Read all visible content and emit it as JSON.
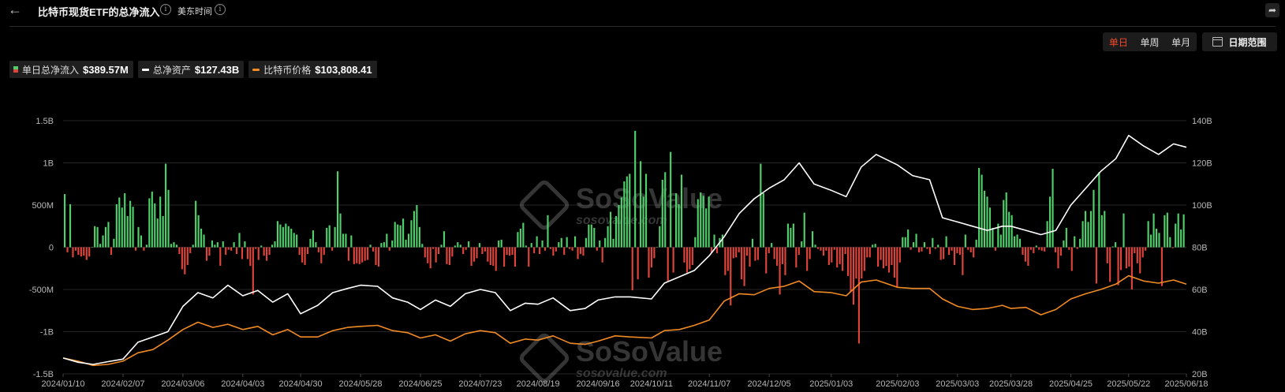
{
  "header": {
    "back_icon": "arrow-left-icon",
    "title": "比特币现货ETF的总净流入",
    "timezone": "美东时间",
    "share_icon": "share-icon"
  },
  "controls": {
    "periods": [
      "单日",
      "单周",
      "单月"
    ],
    "active_period": "单日",
    "date_range_label": "日期范围",
    "active_color": "#f04a2a"
  },
  "legend": [
    {
      "label": "单日总净流入",
      "value": "$389.57M"
    },
    {
      "label": "总净资产",
      "value": "$127.43B"
    },
    {
      "label": "比特币价格",
      "value": "$103,808.41"
    }
  ],
  "watermark": {
    "brand": "SoSoValue",
    "site": "sosovalue.com"
  },
  "chart_data": {
    "type": "bar+line",
    "x_ticks": [
      "2024/01/10",
      "2024/02/07",
      "2024/03/06",
      "2024/04/03",
      "2024/04/30",
      "2024/05/28",
      "2024/06/25",
      "2024/07/23",
      "2024/08/19",
      "2024/09/16",
      "2024/10/11",
      "2024/11/07",
      "2024/12/05",
      "2025/01/03",
      "2025/02/03",
      "2025/03/03",
      "2025/03/28",
      "2025/04/25",
      "2025/05/22",
      "2025/06/18"
    ],
    "y_left_ticks": [
      "1.5B",
      "1B",
      "500M",
      "0",
      "-500M",
      "-1B",
      "-1.5B"
    ],
    "y_left_range": [
      -1500,
      1500
    ],
    "y_left_unit": "USD millions",
    "y_right_ticks": [
      "140B",
      "120B",
      "100B",
      "80B",
      "60B",
      "40B",
      "20B"
    ],
    "y_right_range": [
      20,
      140
    ],
    "y_right_unit": "USD billions",
    "colors": {
      "inflow": "#4ed06a",
      "outflow": "#e0443a",
      "net_assets": "#ffffff",
      "btc_price": "#f08a24",
      "grid": "#262626"
    },
    "series": [
      {
        "name": "单日总净流入",
        "kind": "bar",
        "axis": "left",
        "unit": "USD millions",
        "values": [
          630,
          -60,
          510,
          -120,
          -40,
          -90,
          -110,
          -100,
          -150,
          -110,
          0,
          250,
          240,
          40,
          140,
          240,
          300,
          -90,
          100,
          510,
          590,
          470,
          640,
          370,
          550,
          480,
          -40,
          240,
          140,
          -40,
          30,
          580,
          660,
          520,
          340,
          600,
          370,
          990,
          680,
          40,
          60,
          30,
          -80,
          -260,
          -320,
          -210,
          -70,
          30,
          550,
          380,
          220,
          150,
          -160,
          -100,
          80,
          30,
          60,
          -220,
          70,
          -90,
          -30,
          -40,
          60,
          -80,
          170,
          -140,
          70,
          -140,
          -220,
          -560,
          -20,
          -150,
          20,
          -100,
          -160,
          -90,
          30,
          70,
          310,
          270,
          240,
          280,
          250,
          220,
          170,
          150,
          -90,
          -180,
          -210,
          -80,
          100,
          200,
          60,
          -60,
          -190,
          -90,
          230,
          260,
          -40,
          240,
          900,
          400,
          160,
          160,
          -160,
          140,
          -200,
          -190,
          -200,
          -180,
          -160,
          -150,
          30,
          -50,
          -210,
          -230,
          50,
          60,
          160,
          -40,
          80,
          300,
          270,
          260,
          340,
          90,
          160,
          320,
          430,
          500,
          240,
          40,
          -120,
          -190,
          -250,
          -20,
          -180,
          -80,
          30,
          190,
          -200,
          -210,
          -110,
          20,
          60,
          30,
          -80,
          -30,
          70,
          -220,
          -170,
          -130,
          50,
          -80,
          -50,
          -170,
          -210,
          -220,
          -280,
          80,
          90,
          -230,
          -90,
          -100,
          -90,
          -230,
          180,
          220,
          290,
          20,
          -230,
          50,
          -70,
          130,
          -80,
          80,
          -40,
          380,
          -20,
          -100,
          -50,
          60,
          110,
          -90,
          120,
          -20,
          -40,
          130,
          -140,
          -80,
          -100,
          110,
          270,
          270,
          230,
          -40,
          80,
          -180,
          110,
          250,
          420,
          100,
          370,
          500,
          590,
          780,
          840,
          870,
          -510,
          1380,
          -380,
          1020,
          600,
          870,
          -360,
          -240,
          -130,
          0,
          250,
          800,
          890,
          -400,
          1130,
          -300,
          640,
          510,
          860,
          -180,
          -300,
          -260,
          -210,
          120,
          570,
          650,
          610,
          460,
          600,
          -70,
          150,
          -70,
          110,
          150,
          -330,
          -280,
          -690,
          -130,
          -120,
          -60,
          -380,
          -460,
          -100,
          -230,
          100,
          -160,
          -150,
          990,
          640,
          -310,
          -70,
          50,
          -140,
          -220,
          -560,
          -200,
          -330,
          280,
          230,
          280,
          -240,
          -90,
          70,
          410,
          -280,
          -140,
          190,
          30,
          -20,
          -40,
          -100,
          -40,
          -210,
          -180,
          -30,
          -240,
          -200,
          -280,
          -80,
          -340,
          -530,
          -680,
          -370,
          -1140,
          -370,
          -280,
          -120,
          -120,
          30,
          40,
          -230,
          -150,
          -250,
          -220,
          -300,
          -210,
          -360,
          -480,
          -180,
          120,
          120,
          210,
          -30,
          60,
          160,
          -60,
          -50,
          60,
          -20,
          -80,
          110,
          -20,
          30,
          -150,
          -140,
          130,
          -90,
          -40,
          -210,
          -70,
          -90,
          -330,
          150,
          -30,
          -60,
          -120,
          90,
          940,
          860,
          670,
          600,
          470,
          230,
          -40,
          280,
          150,
          560,
          650,
          420,
          380,
          130,
          150,
          100,
          -90,
          -170,
          -220,
          -30,
          -70,
          20,
          -30,
          -40,
          -50,
          310,
          600,
          930,
          -60,
          -250,
          -100,
          80,
          230,
          -30,
          -280,
          130,
          -20,
          100,
          310,
          430,
          300,
          430,
          680,
          -430,
          890,
          380,
          430,
          -190,
          -410,
          10,
          60,
          -450,
          -270,
          400,
          -250,
          -230,
          -500,
          -70,
          -190,
          -310,
          -120,
          -40,
          310,
          150,
          400,
          220,
          170,
          -460,
          380,
          410,
          120,
          -10,
          280,
          400,
          210,
          390
        ],
        "last_value": 389.57
      },
      {
        "name": "总净资产",
        "kind": "line",
        "axis": "right",
        "unit": "USD billions",
        "points": [
          [
            "2024/01/10",
            27.5
          ],
          [
            "2024/01/17",
            25.5
          ],
          [
            "2024/01/24",
            24.5
          ],
          [
            "2024/01/31",
            25.8
          ],
          [
            "2024/02/07",
            27.0
          ],
          [
            "2024/02/14",
            35.0
          ],
          [
            "2024/02/21",
            37.5
          ],
          [
            "2024/02/28",
            40.0
          ],
          [
            "2024/03/06",
            52.0
          ],
          [
            "2024/03/13",
            58.5
          ],
          [
            "2024/03/20",
            56.0
          ],
          [
            "2024/03/27",
            62.0
          ],
          [
            "2024/04/03",
            57.0
          ],
          [
            "2024/04/10",
            59.5
          ],
          [
            "2024/04/17",
            54.0
          ],
          [
            "2024/04/24",
            58.0
          ],
          [
            "2024/04/30",
            48.5
          ],
          [
            "2024/05/08",
            52.5
          ],
          [
            "2024/05/15",
            58.5
          ],
          [
            "2024/05/22",
            60.5
          ],
          [
            "2024/05/28",
            62.0
          ],
          [
            "2024/06/05",
            61.5
          ],
          [
            "2024/06/12",
            56.0
          ],
          [
            "2024/06/19",
            54.0
          ],
          [
            "2024/06/25",
            50.5
          ],
          [
            "2024/07/02",
            55.0
          ],
          [
            "2024/07/09",
            52.0
          ],
          [
            "2024/07/16",
            58.0
          ],
          [
            "2024/07/23",
            60.0
          ],
          [
            "2024/07/30",
            58.5
          ],
          [
            "2024/08/06",
            50.0
          ],
          [
            "2024/08/13",
            53.5
          ],
          [
            "2024/08/19",
            53.0
          ],
          [
            "2024/08/26",
            56.0
          ],
          [
            "2024/09/03",
            50.0
          ],
          [
            "2024/09/10",
            51.0
          ],
          [
            "2024/09/16",
            55.0
          ],
          [
            "2024/09/24",
            56.5
          ],
          [
            "2024/10/01",
            56.5
          ],
          [
            "2024/10/11",
            55.5
          ],
          [
            "2024/10/17",
            63.0
          ],
          [
            "2024/10/24",
            66.0
          ],
          [
            "2024/10/31",
            69.0
          ],
          [
            "2024/11/07",
            76.0
          ],
          [
            "2024/11/14",
            85.0
          ],
          [
            "2024/11/21",
            96.0
          ],
          [
            "2024/11/28",
            103.0
          ],
          [
            "2024/12/05",
            108.0
          ],
          [
            "2024/12/12",
            112.0
          ],
          [
            "2024/12/19",
            120.0
          ],
          [
            "2024/12/26",
            110.0
          ],
          [
            "2025/01/03",
            107.0
          ],
          [
            "2025/01/10",
            104.0
          ],
          [
            "2025/01/17",
            118.0
          ],
          [
            "2025/01/24",
            124.0
          ],
          [
            "2025/02/03",
            119.0
          ],
          [
            "2025/02/10",
            114.0
          ],
          [
            "2025/02/18",
            112.0
          ],
          [
            "2025/02/24",
            94.0
          ],
          [
            "2025/03/03",
            92.0
          ],
          [
            "2025/03/10",
            90.0
          ],
          [
            "2025/03/17",
            88.0
          ],
          [
            "2025/03/24",
            90.0
          ],
          [
            "2025/03/28",
            90.0
          ],
          [
            "2025/04/04",
            88.0
          ],
          [
            "2025/04/11",
            86.0
          ],
          [
            "2025/04/18",
            88.0
          ],
          [
            "2025/04/25",
            100.0
          ],
          [
            "2025/05/02",
            108.0
          ],
          [
            "2025/05/09",
            116.0
          ],
          [
            "2025/05/16",
            122.0
          ],
          [
            "2025/05/22",
            133.0
          ],
          [
            "2025/05/29",
            128.0
          ],
          [
            "2025/06/05",
            124.0
          ],
          [
            "2025/06/12",
            129.0
          ],
          [
            "2025/06/18",
            127.4
          ]
        ],
        "last_value": 127.43
      },
      {
        "name": "比特币价格",
        "kind": "line",
        "axis": "right",
        "unit": "USD (scaled to right axis, ~1B = $1,000)",
        "points": [
          [
            "2024/01/10",
            27.5
          ],
          [
            "2024/01/17",
            26.0
          ],
          [
            "2024/01/24",
            24.0
          ],
          [
            "2024/01/31",
            24.5
          ],
          [
            "2024/02/07",
            26.0
          ],
          [
            "2024/02/14",
            30.0
          ],
          [
            "2024/02/21",
            31.5
          ],
          [
            "2024/02/28",
            36.0
          ],
          [
            "2024/03/06",
            41.0
          ],
          [
            "2024/03/13",
            44.5
          ],
          [
            "2024/03/20",
            42.0
          ],
          [
            "2024/03/27",
            43.5
          ],
          [
            "2024/04/03",
            41.0
          ],
          [
            "2024/04/10",
            42.5
          ],
          [
            "2024/04/17",
            38.5
          ],
          [
            "2024/04/24",
            41.0
          ],
          [
            "2024/04/30",
            37.5
          ],
          [
            "2024/05/08",
            37.5
          ],
          [
            "2024/05/15",
            40.5
          ],
          [
            "2024/05/22",
            42.0
          ],
          [
            "2024/05/28",
            42.5
          ],
          [
            "2024/06/05",
            43.0
          ],
          [
            "2024/06/12",
            40.5
          ],
          [
            "2024/06/19",
            39.5
          ],
          [
            "2024/06/25",
            37.0
          ],
          [
            "2024/07/02",
            38.5
          ],
          [
            "2024/07/09",
            35.5
          ],
          [
            "2024/07/16",
            39.0
          ],
          [
            "2024/07/23",
            40.5
          ],
          [
            "2024/07/30",
            39.5
          ],
          [
            "2024/08/06",
            34.5
          ],
          [
            "2024/08/13",
            36.5
          ],
          [
            "2024/08/19",
            36.0
          ],
          [
            "2024/08/26",
            38.0
          ],
          [
            "2024/09/03",
            34.5
          ],
          [
            "2024/09/10",
            34.0
          ],
          [
            "2024/09/16",
            35.5
          ],
          [
            "2024/09/24",
            38.0
          ],
          [
            "2024/10/01",
            37.5
          ],
          [
            "2024/10/11",
            37.0
          ],
          [
            "2024/10/17",
            40.5
          ],
          [
            "2024/10/24",
            41.0
          ],
          [
            "2024/10/31",
            43.0
          ],
          [
            "2024/11/07",
            45.5
          ],
          [
            "2024/11/14",
            54.5
          ],
          [
            "2024/11/21",
            58.0
          ],
          [
            "2024/11/28",
            57.5
          ],
          [
            "2024/12/05",
            60.5
          ],
          [
            "2024/12/12",
            61.5
          ],
          [
            "2024/12/19",
            64.0
          ],
          [
            "2024/12/26",
            59.0
          ],
          [
            "2025/01/03",
            58.5
          ],
          [
            "2025/01/10",
            57.0
          ],
          [
            "2025/01/17",
            63.5
          ],
          [
            "2025/01/24",
            64.5
          ],
          [
            "2025/02/03",
            61.0
          ],
          [
            "2025/02/10",
            60.5
          ],
          [
            "2025/02/18",
            60.5
          ],
          [
            "2025/02/24",
            55.5
          ],
          [
            "2025/03/03",
            52.0
          ],
          [
            "2025/03/10",
            50.5
          ],
          [
            "2025/03/17",
            51.0
          ],
          [
            "2025/03/24",
            52.5
          ],
          [
            "2025/03/28",
            51.0
          ],
          [
            "2025/04/04",
            51.5
          ],
          [
            "2025/04/11",
            48.0
          ],
          [
            "2025/04/18",
            50.5
          ],
          [
            "2025/04/25",
            55.5
          ],
          [
            "2025/05/02",
            58.0
          ],
          [
            "2025/05/09",
            60.0
          ],
          [
            "2025/05/16",
            62.5
          ],
          [
            "2025/05/22",
            66.5
          ],
          [
            "2025/05/29",
            64.0
          ],
          [
            "2025/06/05",
            63.0
          ],
          [
            "2025/06/12",
            64.5
          ],
          [
            "2025/06/18",
            62.5
          ]
        ],
        "last_value": 103808.41
      }
    ]
  }
}
